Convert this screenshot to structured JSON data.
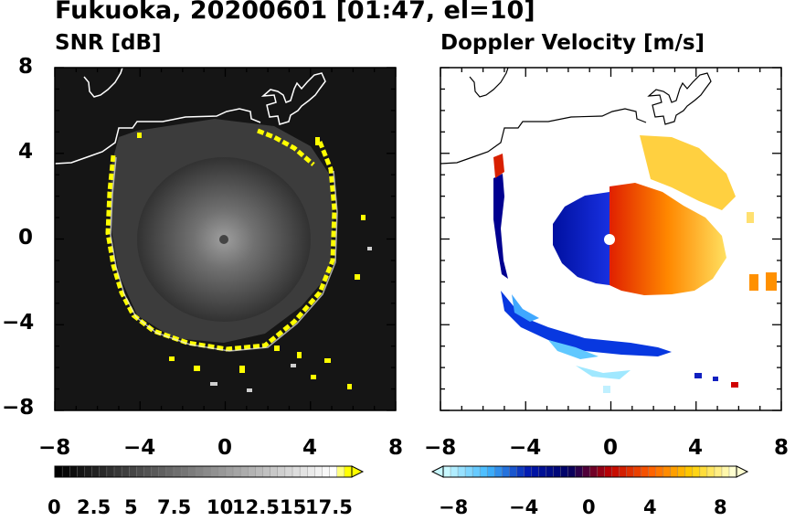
{
  "title": "Fukuoka, 20200601 [01:47, el=10]",
  "panels": [
    {
      "id": "snr",
      "subtitle": "SNR [dB]"
    },
    {
      "id": "dop",
      "subtitle": "Doppler Velocity [m/s]"
    }
  ],
  "chart_data": [
    {
      "type": "heatmap",
      "title": "SNR [dB]",
      "xlim": [
        -8,
        8
      ],
      "ylim": [
        -8,
        8
      ],
      "x_ticks": [
        "−8",
        "−4",
        "0",
        "4",
        "8"
      ],
      "y_ticks": [
        "8",
        "4",
        "0",
        "−4",
        "−8"
      ],
      "colorbar": {
        "ticks": [
          "0",
          "2.5",
          "5",
          "7.5",
          "10",
          "12.5",
          "15",
          "17.5"
        ],
        "range": [
          0,
          18
        ],
        "colors": [
          "#000000",
          "#ffffff",
          "#ffff00"
        ],
        "extend": "max"
      }
    },
    {
      "type": "heatmap",
      "title": "Doppler Velocity [m/s]",
      "xlim": [
        -8,
        8
      ],
      "ylim": [
        -8,
        8
      ],
      "x_ticks": [
        "−8",
        "−4",
        "0",
        "4",
        "8"
      ],
      "y_ticks": [
        "8",
        "4",
        "0",
        "−4",
        "−8"
      ],
      "colorbar": {
        "ticks": [
          "−8",
          "−4",
          "0",
          "4",
          "8"
        ],
        "range": [
          -10,
          10
        ],
        "colors": [
          "#c8f8ff",
          "#40b8ff",
          "#0018b0",
          "#000060",
          "#c00000",
          "#ff6000",
          "#ffd000",
          "#ffffd0"
        ],
        "extend": "both"
      }
    }
  ]
}
